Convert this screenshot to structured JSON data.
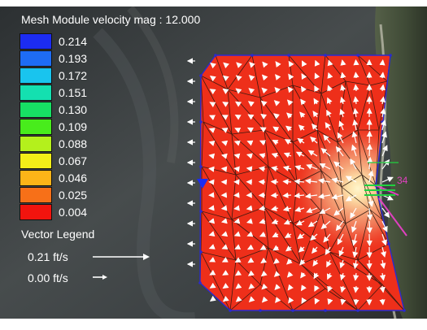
{
  "legend": {
    "title": "Mesh Module velocity mag : 12.000",
    "items": [
      {
        "label": "0.214",
        "color": "#1c2cf2"
      },
      {
        "label": "0.193",
        "color": "#1e6cf4"
      },
      {
        "label": "0.172",
        "color": "#19c4ee"
      },
      {
        "label": "0.151",
        "color": "#14e0b0"
      },
      {
        "label": "0.130",
        "color": "#17e064"
      },
      {
        "label": "0.109",
        "color": "#48ec1c"
      },
      {
        "label": "0.088",
        "color": "#b4f01c"
      },
      {
        "label": "0.067",
        "color": "#f2ee18"
      },
      {
        "label": "0.046",
        "color": "#fcb418"
      },
      {
        "label": "0.025",
        "color": "#f77018"
      },
      {
        "label": "0.004",
        "color": "#f2140e"
      }
    ]
  },
  "vector_legend": {
    "title": "Vector Legend",
    "large": {
      "label": "0.21 ft/s"
    },
    "small": {
      "label": "0.00 ft/s"
    }
  },
  "annotations": {
    "label_34": "34"
  },
  "colors": {
    "mesh_fill": "#ee2f1a",
    "mesh_edge": "#2a2ad0",
    "high_velocity": "#fff4c0",
    "vector": "#ffffff",
    "arrow_marker": "#1c2cf2",
    "magenta": "#e040c0",
    "green": "#20d040"
  }
}
